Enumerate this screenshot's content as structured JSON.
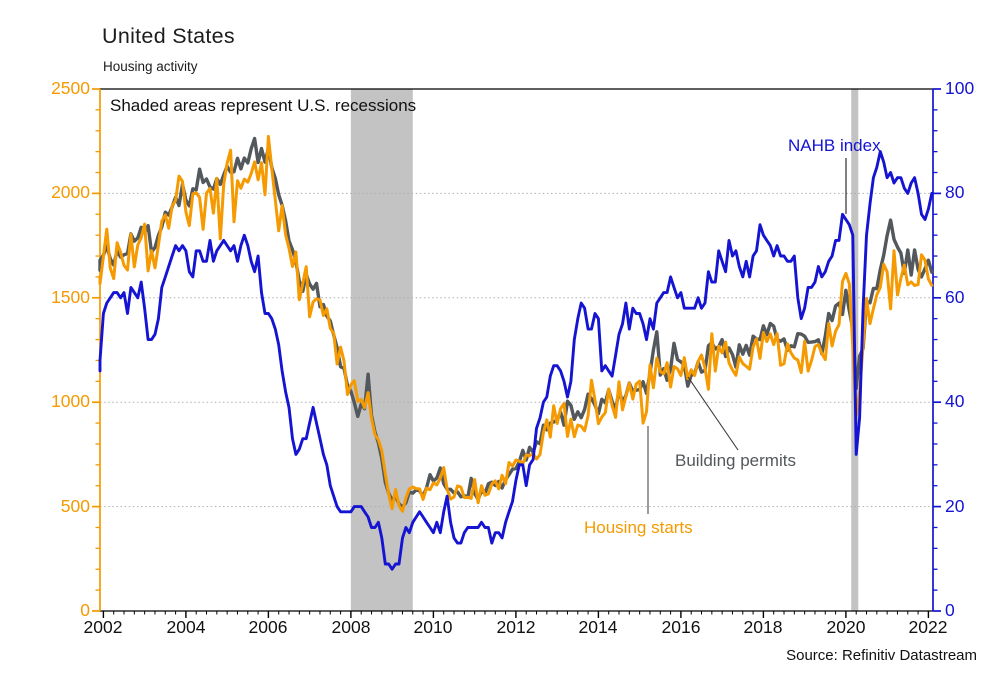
{
  "header": {
    "title": "United States",
    "subtitle": "Housing activity"
  },
  "chart_data": {
    "type": "line",
    "title": "United States",
    "subtitle": "Housing activity",
    "annotation": "Shaded areas represent U.S. recessions",
    "source": "Source: Refinitiv Datastream",
    "x_start": 2001.8333,
    "x_step": 0.08333,
    "x_axis": {
      "ticks": [
        2002,
        2004,
        2006,
        2008,
        2010,
        2012,
        2014,
        2016,
        2018,
        2020,
        2022
      ],
      "minor_step_years": 0.25
    },
    "left_axis": {
      "min": 0,
      "max": 2500,
      "major_ticks": [
        0,
        500,
        1000,
        1500,
        2000,
        2500
      ],
      "minor_step": 100,
      "color": "#F59A00"
    },
    "right_axis": {
      "min": 0,
      "max": 100,
      "major_ticks": [
        0,
        20,
        40,
        60,
        80,
        100
      ],
      "minor_step": 4,
      "color": "#1414D2"
    },
    "grid": {
      "show": true,
      "at_left_values": [
        500,
        1000,
        1500,
        2000
      ],
      "color": "#AFAFAF",
      "style": "dotted"
    },
    "recessions": [
      {
        "start": 2008.0,
        "end": 2009.5
      },
      {
        "start": 2020.13,
        "end": 2020.3
      }
    ],
    "recession_band_color": "#C3C3C3",
    "frame_color": "#000000",
    "series": [
      {
        "name": "Building permits",
        "axis": "left",
        "color": "#53585C",
        "values": [
          1632,
          1680,
          1704,
          1748,
          1687,
          1657,
          1725,
          1695,
          1706,
          1712,
          1806,
          1771,
          1787,
          1837,
          1812,
          1846,
          1719,
          1741,
          1799,
          1839,
          1910,
          1896,
          1935,
          1982,
          1942,
          2043,
          1968,
          1940,
          2022,
          2017,
          2116,
          2052,
          2069,
          2030,
          2021,
          2071,
          2043,
          2088,
          2130,
          2101,
          2104,
          2168,
          2118,
          2169,
          2146,
          2214,
          2263,
          2148,
          2215,
          2150,
          2217,
          2123,
          2072,
          1994,
          1943,
          1869,
          1772,
          1730,
          1673,
          1580,
          1531,
          1613,
          1566,
          1541,
          1569,
          1457,
          1468,
          1413,
          1389,
          1322,
          1261,
          1170,
          1162,
          1080,
          1052,
          998,
          932,
          991,
          969,
          1134,
          937,
          857,
          805,
          730,
          616,
          564,
          531,
          550,
          513,
          498,
          518,
          570,
          564,
          580,
          575,
          551,
          589,
          653,
          622,
          637,
          685,
          610,
          583,
          583,
          565,
          571,
          547,
          552,
          544,
          635,
          563,
          534,
          574,
          563,
          609,
          617,
          601,
          620,
          589,
          630,
          653,
          679,
          682,
          715,
          769,
          723,
          784,
          760,
          811,
          801,
          890,
          868,
          900,
          905,
          915,
          952,
          890,
          1005,
          985,
          918,
          954,
          926,
          965,
          1039,
          1017,
          986,
          945,
          1014,
          997,
          1059,
          1005,
          963,
          1057,
          1003,
          1031,
          1092,
          1052,
          1058,
          1060,
          1098,
          1042,
          1140,
          1250,
          1337,
          1130,
          1161,
          1105,
          1161,
          1282,
          1204,
          1193,
          1177,
          1077,
          1130,
          1136,
          1193,
          1144,
          1152,
          1270,
          1285,
          1255,
          1266,
          1300,
          1219,
          1260,
          1228,
          1168,
          1275,
          1230,
          1272,
          1225,
          1316,
          1303,
          1300,
          1366,
          1323,
          1377,
          1364,
          1301,
          1292,
          1303,
          1249,
          1270,
          1265,
          1328,
          1326,
          1316,
          1287,
          1288,
          1290,
          1299,
          1232,
          1317,
          1425,
          1391,
          1461,
          1474,
          1420,
          1536,
          1438,
          1350,
          1066,
          1220,
          1258,
          1483,
          1476,
          1545,
          1544,
          1635,
          1704,
          1798,
          1872,
          1780,
          1743,
          1714,
          1618,
          1729,
          1609,
          1729,
          1636,
          1600,
          1640,
          1680,
          1623
        ]
      },
      {
        "name": "Housing starts",
        "axis": "left",
        "color": "#F59A00",
        "values": [
          1602,
          1568,
          1698,
          1829,
          1642,
          1592,
          1764,
          1717,
          1655,
          1633,
          1804,
          1648,
          1753,
          1788,
          1853,
          1629,
          1726,
          1643,
          1751,
          1867,
          1897,
          1833,
          1939,
          1967,
          2083,
          2057,
          1911,
          1846,
          1998,
          2003,
          1981,
          1828,
          2002,
          2024,
          1905,
          2072,
          1782,
          2042,
          2144,
          2207,
          1864,
          2061,
          2025,
          2068,
          2054,
          2095,
          2151,
          2065,
          2147,
          1994,
          2273,
          2119,
          1969,
          1821,
          1942,
          1802,
          1737,
          1650,
          1720,
          1491,
          1570,
          1649,
          1409,
          1480,
          1495,
          1490,
          1415,
          1448,
          1354,
          1330,
          1183,
          1264,
          1197,
          1037,
          1084,
          1103,
          1005,
          1013,
          973,
          1046,
          923,
          844,
          820,
          767,
          655,
          560,
          490,
          582,
          505,
          478,
          540,
          585,
          594,
          586,
          585,
          534,
          588,
          581,
          614,
          604,
          636,
          687,
          583,
          536,
          546,
          599,
          594,
          543,
          545,
          539,
          630,
          518,
          600,
          554,
          561,
          608,
          623,
          585,
          650,
          610,
          711,
          694,
          723,
          718,
          706,
          747,
          744,
          754,
          728,
          749,
          854,
          915,
          833,
          983,
          898,
          969,
          994,
          836,
          919,
          835,
          891,
          885,
          863,
          936,
          1105,
          1010,
          897,
          928,
          950,
          1063,
          984,
          927,
          1098,
          963,
          1028,
          1092,
          1015,
          1087,
          1101,
          900,
          954,
          1178,
          1069,
          1211,
          1147,
          1136,
          1189,
          1073,
          1171,
          1160,
          1128,
          1213,
          1113,
          1155,
          1128,
          1195,
          1226,
          1164,
          1062,
          1328,
          1149,
          1268,
          1236,
          1288,
          1189,
          1154,
          1129,
          1217,
          1185,
          1172,
          1158,
          1265,
          1303,
          1210,
          1334,
          1290,
          1327,
          1276,
          1329,
          1177,
          1184,
          1279,
          1237,
          1211,
          1202,
          1142,
          1291,
          1149,
          1199,
          1267,
          1276,
          1233,
          1204,
          1377,
          1269,
          1340,
          1371,
          1578,
          1617,
          1567,
          1269,
          938,
          1046,
          1273,
          1497,
          1376,
          1448,
          1514,
          1551,
          1661,
          1625,
          1447,
          1725,
          1514,
          1594,
          1657,
          1562,
          1576,
          1559,
          1563,
          1706,
          1680,
          1590,
          1560
        ]
      },
      {
        "name": "NAHB index",
        "axis": "right",
        "color": "#1414D2",
        "values": [
          46,
          48,
          57,
          59,
          60,
          61,
          61,
          60,
          61,
          57,
          62,
          61,
          60,
          63,
          58,
          52,
          52,
          53,
          56,
          62,
          64,
          66,
          68,
          70,
          69,
          70,
          69,
          65,
          64,
          69,
          69,
          67,
          67,
          71,
          67,
          69,
          70,
          71,
          70,
          69,
          70,
          67,
          70,
          72,
          70,
          67,
          65,
          68,
          61,
          57,
          57,
          56,
          54,
          51,
          46,
          42,
          39,
          33,
          30,
          31,
          33,
          33,
          36,
          39,
          36,
          33,
          30,
          28,
          24,
          22,
          20,
          19,
          19,
          19,
          19,
          20,
          20,
          20,
          19,
          18,
          16,
          16,
          17,
          14,
          9,
          9,
          8,
          9,
          9,
          14,
          16,
          15,
          17,
          18,
          19,
          18,
          17,
          16,
          15,
          17,
          15,
          19,
          22,
          17,
          14,
          13,
          13,
          15,
          16,
          16,
          16,
          16,
          17,
          16,
          16,
          13,
          15,
          15,
          14,
          17,
          19,
          21,
          25,
          28,
          28,
          24,
          28,
          29,
          35,
          37,
          40,
          41,
          45,
          47,
          47,
          46,
          44,
          41,
          44,
          52,
          56,
          59,
          58,
          54,
          54,
          57,
          56,
          46,
          47,
          46,
          45,
          49,
          53,
          55,
          59,
          54,
          58,
          57,
          57,
          55,
          52,
          56,
          54,
          59,
          60,
          61,
          61,
          64,
          62,
          60,
          61,
          58,
          58,
          58,
          58,
          60,
          58,
          59,
          65,
          63,
          63,
          69,
          67,
          65,
          71,
          68,
          69,
          66,
          64,
          67,
          64,
          68,
          69,
          74,
          72,
          71,
          70,
          68,
          70,
          68,
          68,
          67,
          67,
          68,
          60,
          56,
          58,
          62,
          62,
          63,
          66,
          64,
          65,
          67,
          68,
          71,
          71,
          76,
          75,
          74,
          72,
          30,
          37,
          58,
          72,
          78,
          83,
          85,
          88,
          86,
          83,
          84,
          82,
          83,
          83,
          81,
          80,
          82,
          83,
          80,
          76,
          75,
          77,
          80
        ]
      }
    ]
  }
}
